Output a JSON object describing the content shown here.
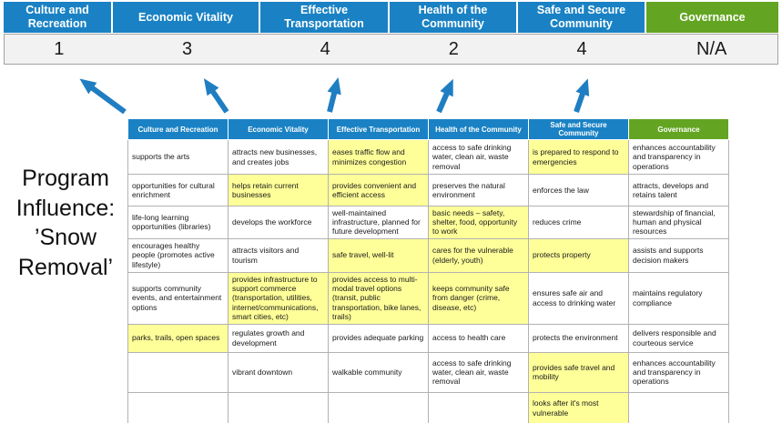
{
  "title": "Program Influence: ’Snow Removal’",
  "colors": {
    "blue": "#1a82c4",
    "green": "#63a522",
    "highlight": "#ffff99",
    "score_band_bg": "#f2f2f2",
    "arrow": "#1f7ec2"
  },
  "summary": {
    "columns": [
      {
        "label": "Culture and Recreation",
        "score": "1",
        "theme": "blue"
      },
      {
        "label": "Economic Vitality",
        "score": "3",
        "theme": "blue"
      },
      {
        "label": "Effective Transportation",
        "score": "4",
        "theme": "blue"
      },
      {
        "label": "Health of the Community",
        "score": "2",
        "theme": "blue"
      },
      {
        "label": "Safe and Secure Community",
        "score": "4",
        "theme": "blue"
      },
      {
        "label": "Governance",
        "score": "N/A",
        "theme": "green"
      }
    ]
  },
  "matrix": {
    "headers": [
      {
        "label": "Culture and Recreation",
        "theme": "blue"
      },
      {
        "label": "Economic Vitality",
        "theme": "blue"
      },
      {
        "label": "Effective Transportation",
        "theme": "blue"
      },
      {
        "label": "Health of the Community",
        "theme": "blue"
      },
      {
        "label": "Safe and Secure Community",
        "theme": "blue"
      },
      {
        "label": "Governance",
        "theme": "green"
      }
    ],
    "rows": [
      [
        {
          "text": "supports the arts",
          "highlight": false
        },
        {
          "text": "attracts new businesses, and creates jobs",
          "highlight": false
        },
        {
          "text": "eases traffic flow and minimizes congestion",
          "highlight": true
        },
        {
          "text": "access to safe drinking water, clean air, waste removal",
          "highlight": false
        },
        {
          "text": "is prepared to respond to emergencies",
          "highlight": true
        },
        {
          "text": "enhances accountability and transparency in operations",
          "highlight": false
        }
      ],
      [
        {
          "text": "opportunities for cultural enrichment",
          "highlight": false
        },
        {
          "text": "helps retain current businesses",
          "highlight": true
        },
        {
          "text": "provides convenient and efficient access",
          "highlight": true
        },
        {
          "text": "preserves the natural environment",
          "highlight": false
        },
        {
          "text": "enforces the law",
          "highlight": false
        },
        {
          "text": "attracts, develops and retains talent",
          "highlight": false
        }
      ],
      [
        {
          "text": "life-long learning opportunities (libraries)",
          "highlight": false
        },
        {
          "text": "develops the workforce",
          "highlight": false
        },
        {
          "text": "well-maintained infrastructure, planned for future development",
          "highlight": false
        },
        {
          "text": "basic needs – safety, shelter, food, opportunity to work",
          "highlight": true
        },
        {
          "text": "reduces crime",
          "highlight": false
        },
        {
          "text": "stewardship of financial, human and physical resources",
          "highlight": false
        }
      ],
      [
        {
          "text": "encourages healthy people (promotes active lifestyle)",
          "highlight": false
        },
        {
          "text": "attracts visitors and tourism",
          "highlight": false
        },
        {
          "text": "safe travel, well-lit",
          "highlight": true
        },
        {
          "text": "cares for the vulnerable (elderly, youth)",
          "highlight": true
        },
        {
          "text": "protects property",
          "highlight": true
        },
        {
          "text": "assists and supports decision makers",
          "highlight": false
        }
      ],
      [
        {
          "text": "supports community events, and entertainment options",
          "highlight": false
        },
        {
          "text": "provides infrastructure to support commerce (transportation, utilities, internet/communications, smart cities, etc)",
          "highlight": true
        },
        {
          "text": "provides access to multi-modal travel options (transit, public transportation, bike lanes, trails)",
          "highlight": true
        },
        {
          "text": "keeps community safe from danger (crime, disease, etc)",
          "highlight": true
        },
        {
          "text": "ensures safe air and access to drinking water",
          "highlight": false
        },
        {
          "text": "maintains regulatory compliance",
          "highlight": false
        }
      ],
      [
        {
          "text": "parks, trails, open spaces",
          "highlight": true
        },
        {
          "text": "regulates growth and development",
          "highlight": false
        },
        {
          "text": "provides adequate parking",
          "highlight": false
        },
        {
          "text": "access to health care",
          "highlight": false
        },
        {
          "text": "protects the environment",
          "highlight": false
        },
        {
          "text": "delivers responsible and courteous service",
          "highlight": false
        }
      ],
      [
        {
          "text": "",
          "highlight": false
        },
        {
          "text": "vibrant downtown",
          "highlight": false
        },
        {
          "text": "walkable community",
          "highlight": false
        },
        {
          "text": "access to safe drinking water, clean air, waste removal",
          "highlight": false
        },
        {
          "text": "provides safe travel and mobility",
          "highlight": true
        },
        {
          "text": "enhances accountability and transparency in operations",
          "highlight": false
        }
      ],
      [
        {
          "text": "",
          "highlight": false
        },
        {
          "text": "",
          "highlight": false
        },
        {
          "text": "",
          "highlight": false
        },
        {
          "text": "",
          "highlight": false
        },
        {
          "text": "looks after it's most vulnerable",
          "highlight": true
        },
        {
          "text": "",
          "highlight": false
        }
      ]
    ]
  }
}
